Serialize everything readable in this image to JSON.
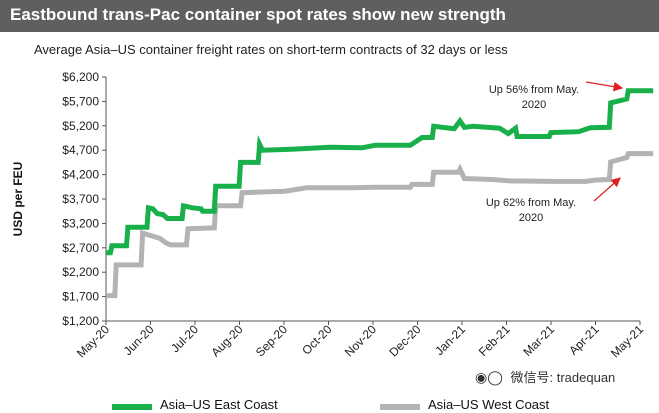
{
  "header": {
    "title": "Eastbound trans-Pac container spot rates show new strength",
    "subtitle": "Average Asia–US container freight rates on short-term contracts of 32 days or less"
  },
  "watermark": {
    "icon": "wechat-icon",
    "text": "微信号: tradequan"
  },
  "colors": {
    "east_coast": "#19b04b",
    "west_coast": "#b3b3b3",
    "title_bg": "#5f5f5f",
    "annotation_arrow": "#e02020"
  },
  "chart_data": {
    "type": "line",
    "ylabel": "USD per FEU",
    "xlabel": "",
    "ylim": [
      1200,
      6200
    ],
    "y_ticks": [
      "$6,200",
      "$5,700",
      "$5,200",
      "$4,700",
      "$4,200",
      "$3,700",
      "$3,200",
      "$2,700",
      "$2,200",
      "$1,700",
      "$1,200"
    ],
    "x_ticks": [
      "May-20",
      "Jun-20",
      "Jul-20",
      "Aug-20",
      "Sep-20",
      "Oct-20",
      "Nov-20",
      "Dec-20",
      "Jan-21",
      "Feb-21",
      "Mar-21",
      "Apr-21",
      "May-21"
    ],
    "grid": false,
    "legend_position": "bottom",
    "series": [
      {
        "name": "Asia–US East Coast",
        "color": "#19b04b",
        "points": [
          [
            "2020-05-01",
            2600
          ],
          [
            "2020-05-04",
            2600
          ],
          [
            "2020-05-05",
            2740
          ],
          [
            "2020-05-15",
            2740
          ],
          [
            "2020-05-16",
            3120
          ],
          [
            "2020-05-29",
            3120
          ],
          [
            "2020-05-30",
            3520
          ],
          [
            "2020-06-02",
            3500
          ],
          [
            "2020-06-05",
            3400
          ],
          [
            "2020-06-09",
            3380
          ],
          [
            "2020-06-12",
            3300
          ],
          [
            "2020-06-22",
            3300
          ],
          [
            "2020-06-23",
            3560
          ],
          [
            "2020-06-29",
            3520
          ],
          [
            "2020-07-05",
            3500
          ],
          [
            "2020-07-06",
            3450
          ],
          [
            "2020-07-14",
            3450
          ],
          [
            "2020-07-15",
            3960
          ],
          [
            "2020-07-31",
            3960
          ],
          [
            "2020-08-01",
            4450
          ],
          [
            "2020-08-13",
            4450
          ],
          [
            "2020-08-14",
            4820
          ],
          [
            "2020-08-16",
            4700
          ],
          [
            "2020-09-05",
            4720
          ],
          [
            "2020-10-01",
            4760
          ],
          [
            "2020-10-23",
            4750
          ],
          [
            "2020-11-01",
            4800
          ],
          [
            "2020-11-25",
            4800
          ],
          [
            "2020-12-03",
            4960
          ],
          [
            "2020-12-10",
            4960
          ],
          [
            "2020-12-11",
            5190
          ],
          [
            "2020-12-25",
            5140
          ],
          [
            "2020-12-29",
            5300
          ],
          [
            "2021-01-01",
            5170
          ],
          [
            "2021-01-07",
            5190
          ],
          [
            "2021-01-25",
            5150
          ],
          [
            "2021-01-31",
            5040
          ],
          [
            "2021-02-05",
            5150
          ],
          [
            "2021-02-06",
            4980
          ],
          [
            "2021-02-28",
            4980
          ],
          [
            "2021-03-01",
            5060
          ],
          [
            "2021-03-20",
            5080
          ],
          [
            "2021-03-28",
            5160
          ],
          [
            "2021-04-10",
            5170
          ],
          [
            "2021-04-11",
            5670
          ],
          [
            "2021-04-22",
            5750
          ],
          [
            "2021-04-23",
            5920
          ],
          [
            "2021-05-10",
            5920
          ]
        ]
      },
      {
        "name": "Asia–US West Coast",
        "color": "#b3b3b3",
        "points": [
          [
            "2020-05-01",
            1720
          ],
          [
            "2020-05-07",
            1720
          ],
          [
            "2020-05-08",
            2350
          ],
          [
            "2020-05-25",
            2350
          ],
          [
            "2020-05-26",
            3000
          ],
          [
            "2020-06-02",
            2940
          ],
          [
            "2020-06-07",
            2890
          ],
          [
            "2020-06-11",
            2800
          ],
          [
            "2020-06-14",
            2760
          ],
          [
            "2020-06-25",
            2760
          ],
          [
            "2020-06-26",
            3090
          ],
          [
            "2020-07-14",
            3110
          ],
          [
            "2020-07-15",
            3560
          ],
          [
            "2020-08-01",
            3560
          ],
          [
            "2020-08-02",
            3830
          ],
          [
            "2020-08-31",
            3860
          ],
          [
            "2020-09-05",
            3880
          ],
          [
            "2020-09-15",
            3930
          ],
          [
            "2020-10-15",
            3930
          ],
          [
            "2020-11-01",
            3940
          ],
          [
            "2020-11-25",
            3940
          ],
          [
            "2020-11-26",
            4000
          ],
          [
            "2020-12-10",
            4000
          ],
          [
            "2020-12-11",
            4250
          ],
          [
            "2020-12-28",
            4250
          ],
          [
            "2020-12-29",
            4310
          ],
          [
            "2021-01-01",
            4120
          ],
          [
            "2021-01-20",
            4100
          ],
          [
            "2021-02-01",
            4070
          ],
          [
            "2021-03-01",
            4060
          ],
          [
            "2021-03-25",
            4060
          ],
          [
            "2021-04-01",
            4090
          ],
          [
            "2021-04-10",
            4100
          ],
          [
            "2021-04-11",
            4460
          ],
          [
            "2021-04-22",
            4550
          ],
          [
            "2021-04-23",
            4630
          ],
          [
            "2021-05-10",
            4630
          ]
        ]
      }
    ],
    "annotations": [
      {
        "text": "Up 56% from May. 2020",
        "line1": "Up 56% from May.",
        "line2": "2020",
        "series": "Asia–US East Coast"
      },
      {
        "text": "Up 62% from May. 2020",
        "line1": "Up 62% from May.",
        "line2": "2020",
        "series": "Asia–US West Coast"
      }
    ]
  }
}
